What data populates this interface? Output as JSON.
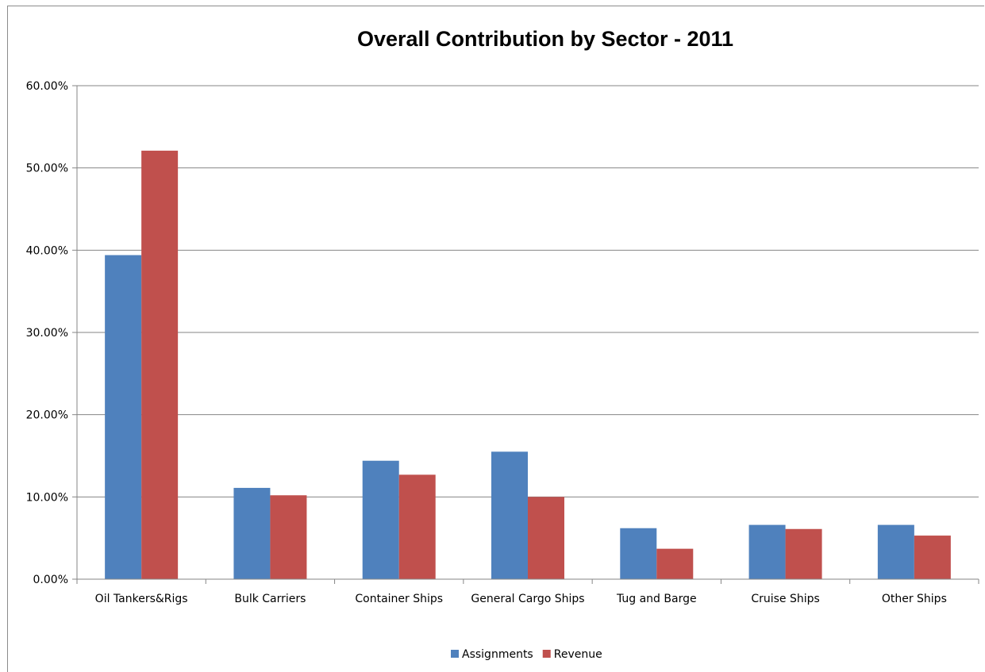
{
  "chart_data": {
    "type": "bar",
    "title": "Overall Contribution by Sector - 2011",
    "categories": [
      "Oil Tankers&Rigs",
      "Bulk Carriers",
      "Container Ships",
      "General Cargo Ships",
      "Tug and Barge",
      "Cruise Ships",
      "Other Ships"
    ],
    "series": [
      {
        "name": "Assignments",
        "color": "#4f81bd",
        "values": [
          0.394,
          0.111,
          0.144,
          0.155,
          0.062,
          0.066,
          0.066
        ]
      },
      {
        "name": "Revenue",
        "color": "#c0504d",
        "values": [
          0.521,
          0.102,
          0.127,
          0.1,
          0.037,
          0.061,
          0.053
        ]
      }
    ],
    "y_ticks": [
      "0.00%",
      "10.00%",
      "20.00%",
      "30.00%",
      "40.00%",
      "50.00%",
      "60.00%"
    ],
    "ylim": [
      0,
      0.6
    ],
    "grid": true,
    "legend_position": "bottom"
  }
}
